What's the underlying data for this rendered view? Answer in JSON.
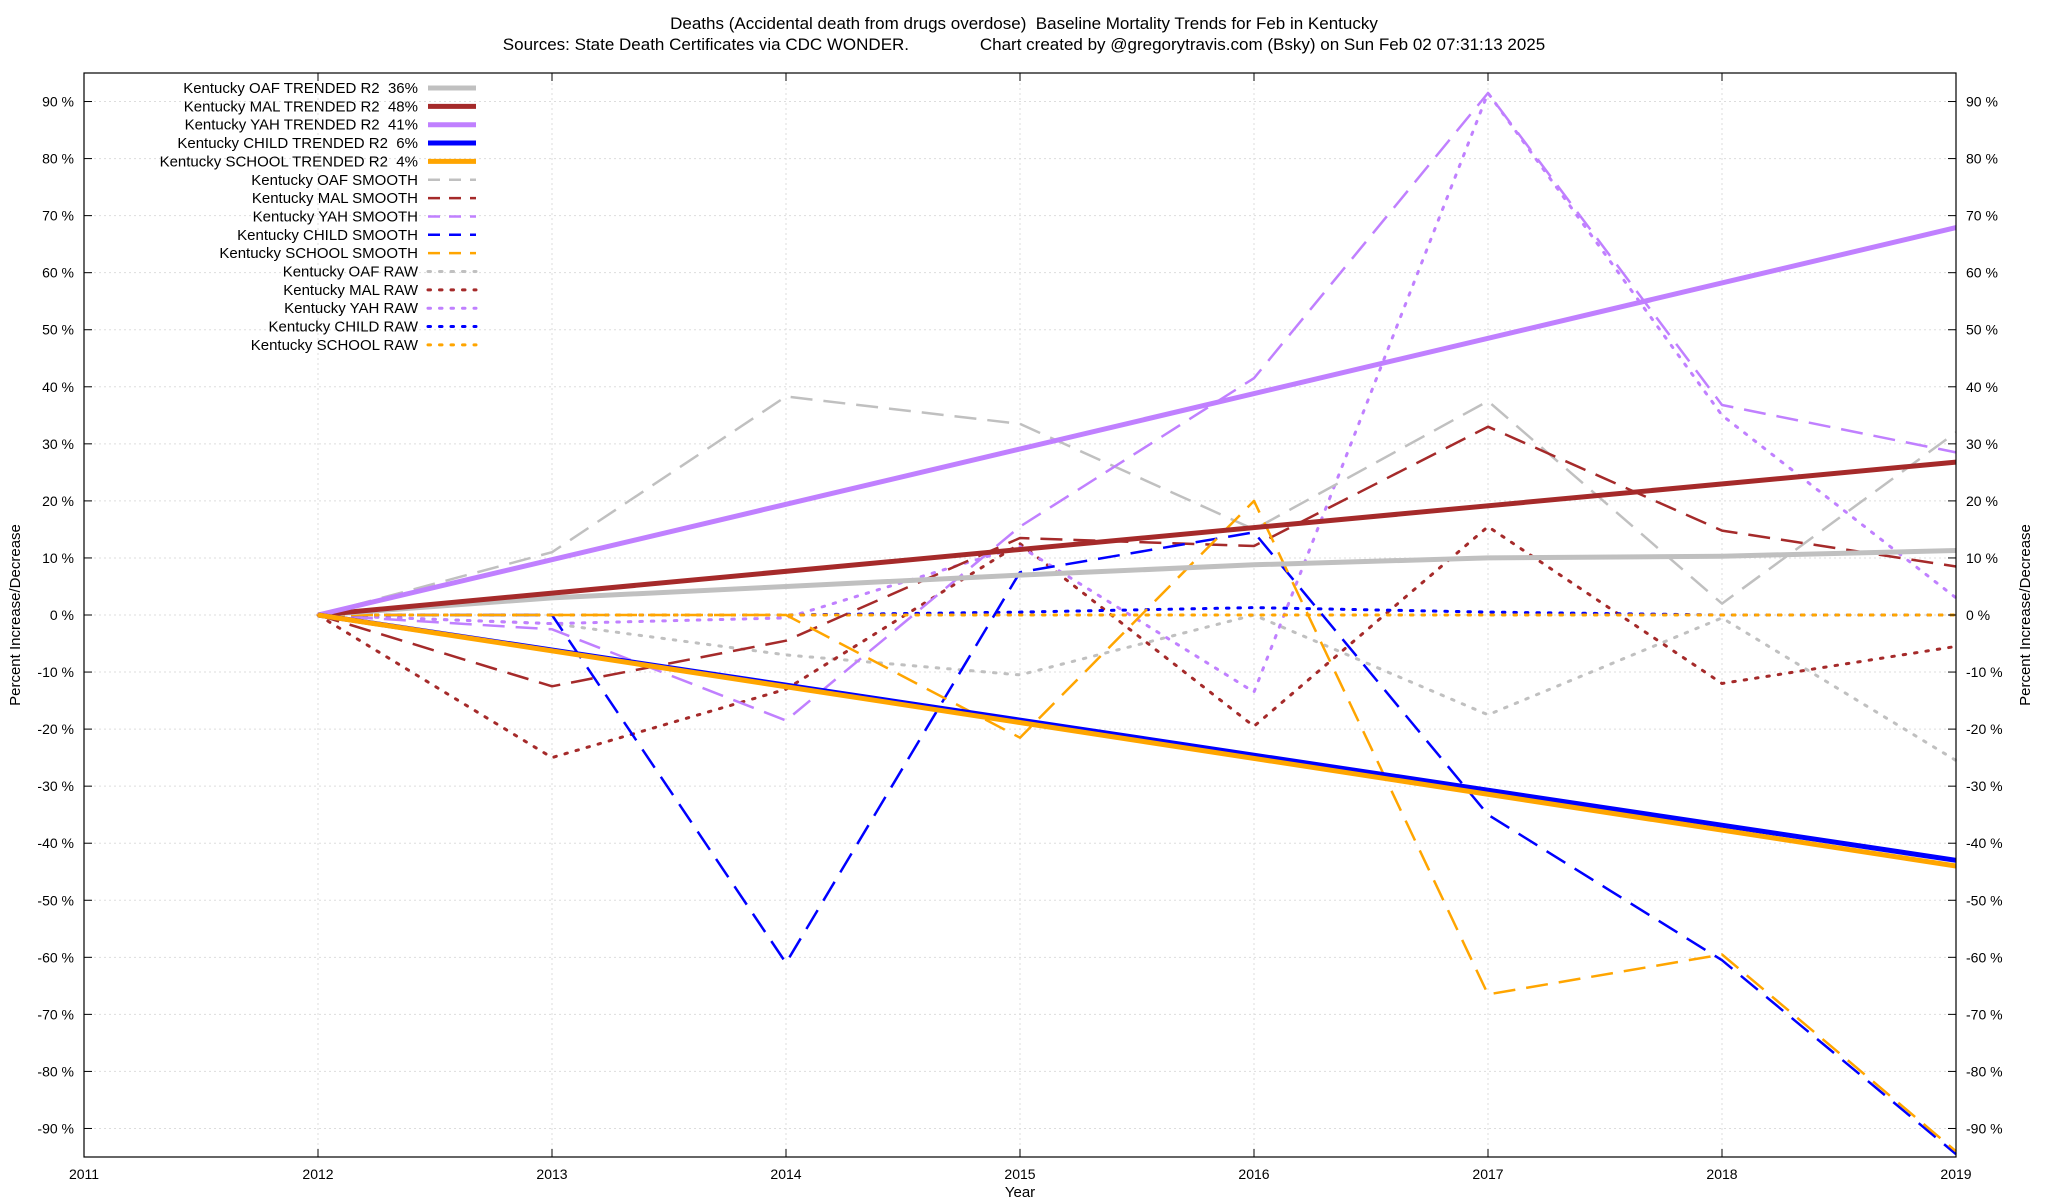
{
  "chart_data": {
    "type": "line",
    "title": "Deaths (Accidental death from drugs overdose)  Baseline Mortality Trends for Feb in Kentucky",
    "subtitle": "Sources: State Death Certificates via CDC WONDER.               Chart created by @gregorytravis.com (Bsky) on Sun Feb 02 07:31:13 2025",
    "xlabel": "Year",
    "ylabel": "Percent Increase/Decrease",
    "y2label": "Percent Increase/Decrease",
    "xlim": [
      2011,
      2019
    ],
    "ylim": [
      -95,
      95
    ],
    "x_ticks": [
      "2011",
      "2012",
      "2013",
      "2014",
      "2015",
      "2016",
      "2017",
      "2018",
      "2019"
    ],
    "y_ticks": [
      "90 %",
      "80 %",
      "70 %",
      "60 %",
      "50 %",
      "40 %",
      "30 %",
      "20 %",
      "10 %",
      "0 %",
      "-10 %",
      "-20 %",
      "-30 %",
      "-40 %",
      "-50 %",
      "-60 %",
      "-70 %",
      "-80 %",
      "-90 %"
    ],
    "grid": true,
    "legend_position": "top-left",
    "series": [
      {
        "name": "Kentucky OAF TRENDED R2  36%",
        "style": "trend",
        "color": "#c0c0c0",
        "x": [
          2012,
          2013,
          2014,
          2015,
          2016,
          2017,
          2018,
          2019
        ],
        "y": [
          0,
          3,
          5,
          7,
          8.8,
          10,
          10.3,
          11.3
        ]
      },
      {
        "name": "Kentucky MAL TRENDED R2  48%",
        "style": "trend",
        "color": "#a52a2a",
        "x": [
          2012,
          2019
        ],
        "y": [
          0,
          26.8
        ]
      },
      {
        "name": "Kentucky YAH TRENDED R2  41%",
        "style": "trend",
        "color": "#c080ff",
        "x": [
          2012,
          2019
        ],
        "y": [
          0,
          67.9
        ]
      },
      {
        "name": "Kentucky CHILD TRENDED R2  6%",
        "style": "trend",
        "color": "#0000ff",
        "x": [
          2012,
          2019
        ],
        "y": [
          0,
          -43
        ]
      },
      {
        "name": "Kentucky SCHOOL TRENDED R2  4%",
        "style": "trend",
        "color": "#ffa500",
        "x": [
          2012,
          2019
        ],
        "y": [
          0,
          -44
        ]
      },
      {
        "name": "Kentucky OAF SMOOTH",
        "style": "smooth",
        "color": "#c0c0c0",
        "x": [
          2012,
          2013,
          2014,
          2015,
          2016,
          2017,
          2018,
          2019
        ],
        "y": [
          0,
          11,
          38.3,
          33.5,
          15,
          37.5,
          2,
          32
        ]
      },
      {
        "name": "Kentucky MAL SMOOTH",
        "style": "smooth",
        "color": "#a52a2a",
        "x": [
          2012,
          2013,
          2014,
          2015,
          2016,
          2017,
          2018,
          2019
        ],
        "y": [
          0,
          -12.5,
          -4.5,
          13.5,
          12.1,
          33,
          14.8,
          8.5
        ]
      },
      {
        "name": "Kentucky YAH SMOOTH",
        "style": "smooth",
        "color": "#c080ff",
        "x": [
          2012,
          2013,
          2014,
          2015,
          2016,
          2017,
          2018,
          2019
        ],
        "y": [
          0,
          -2.5,
          -18.5,
          15.5,
          41.5,
          91.5,
          36.8,
          28.5
        ]
      },
      {
        "name": "Kentucky CHILD SMOOTH",
        "style": "smooth",
        "color": "#0000ff",
        "x": [
          2012,
          2013,
          2014,
          2015,
          2016,
          2017,
          2018,
          2019
        ],
        "y": [
          0,
          0,
          -61,
          7.5,
          14.5,
          -35,
          -60.5,
          -94.5
        ]
      },
      {
        "name": "Kentucky SCHOOL SMOOTH",
        "style": "smooth",
        "color": "#ffa500",
        "x": [
          2012,
          2013,
          2014,
          2015,
          2016,
          2017,
          2018,
          2019
        ],
        "y": [
          0,
          0,
          0,
          -21.5,
          20,
          -66.5,
          -59.5,
          -94
        ]
      },
      {
        "name": "Kentucky OAF RAW",
        "style": "raw",
        "color": "#c0c0c0",
        "x": [
          2012,
          2013,
          2014,
          2015,
          2016,
          2017,
          2018,
          2019
        ],
        "y": [
          0,
          -1.5,
          -7,
          -10.5,
          0,
          -17.5,
          -0.5,
          -25.5
        ]
      },
      {
        "name": "Kentucky MAL RAW",
        "style": "raw",
        "color": "#a52a2a",
        "x": [
          2012,
          2013,
          2014,
          2015,
          2016,
          2017,
          2018,
          2019
        ],
        "y": [
          0,
          -25,
          -13,
          12.5,
          -19.5,
          15.5,
          -12,
          -5.5
        ]
      },
      {
        "name": "Kentucky YAH RAW",
        "style": "raw",
        "color": "#c080ff",
        "x": [
          2012,
          2013,
          2014,
          2015,
          2016,
          2017,
          2018,
          2019
        ],
        "y": [
          0,
          -1.5,
          -0.5,
          12,
          -13.5,
          91.5,
          35,
          3
        ]
      },
      {
        "name": "Kentucky CHILD RAW",
        "style": "raw",
        "color": "#0000ff",
        "x": [
          2012,
          2013,
          2014,
          2015,
          2016,
          2017,
          2018,
          2019
        ],
        "y": [
          0,
          0,
          0,
          0.5,
          1.3,
          0.5,
          0,
          0
        ]
      },
      {
        "name": "Kentucky SCHOOL RAW",
        "style": "raw",
        "color": "#ffa500",
        "x": [
          2012,
          2013,
          2014,
          2015,
          2016,
          2017,
          2018,
          2019
        ],
        "y": [
          0,
          0,
          0,
          0,
          0,
          0,
          0,
          0
        ]
      }
    ]
  }
}
